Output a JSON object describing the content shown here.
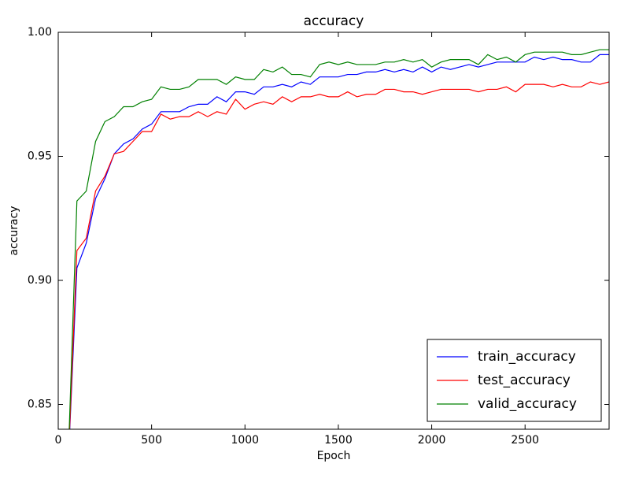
{
  "chart_data": {
    "type": "line",
    "title": "accuracy",
    "x_label": "Epoch",
    "y_label": "accuracy",
    "x": [
      50,
      100,
      150,
      200,
      250,
      300,
      350,
      400,
      450,
      500,
      550,
      600,
      650,
      700,
      750,
      800,
      850,
      900,
      950,
      1000,
      1050,
      1100,
      1150,
      1200,
      1250,
      1300,
      1350,
      1400,
      1450,
      1500,
      1550,
      1600,
      1650,
      1700,
      1750,
      1800,
      1850,
      1900,
      1950,
      2000,
      2050,
      2100,
      2150,
      2200,
      2250,
      2300,
      2350,
      2400,
      2450,
      2500,
      2550,
      2600,
      2650,
      2700,
      2750,
      2800,
      2850,
      2900,
      2950
    ],
    "series": [
      {
        "name": "train_accuracy",
        "color": "#0000ff",
        "values": [
          0.82,
          0.905,
          0.915,
          0.933,
          0.941,
          0.951,
          0.955,
          0.957,
          0.961,
          0.963,
          0.968,
          0.968,
          0.968,
          0.97,
          0.971,
          0.971,
          0.974,
          0.972,
          0.976,
          0.976,
          0.975,
          0.978,
          0.978,
          0.979,
          0.978,
          0.98,
          0.979,
          0.982,
          0.982,
          0.982,
          0.983,
          0.983,
          0.984,
          0.984,
          0.985,
          0.984,
          0.985,
          0.984,
          0.986,
          0.984,
          0.986,
          0.985,
          0.986,
          0.987,
          0.986,
          0.987,
          0.988,
          0.988,
          0.988,
          0.988,
          0.99,
          0.989,
          0.99,
          0.989,
          0.989,
          0.988,
          0.988,
          0.991,
          0.991
        ]
      },
      {
        "name": "test_accuracy",
        "color": "#ff0000",
        "values": [
          0.82,
          0.912,
          0.917,
          0.936,
          0.942,
          0.951,
          0.952,
          0.956,
          0.96,
          0.96,
          0.967,
          0.965,
          0.966,
          0.966,
          0.968,
          0.966,
          0.968,
          0.967,
          0.973,
          0.969,
          0.971,
          0.972,
          0.971,
          0.974,
          0.972,
          0.974,
          0.974,
          0.975,
          0.974,
          0.974,
          0.976,
          0.974,
          0.975,
          0.975,
          0.977,
          0.977,
          0.976,
          0.976,
          0.975,
          0.976,
          0.977,
          0.977,
          0.977,
          0.977,
          0.976,
          0.977,
          0.977,
          0.978,
          0.976,
          0.979,
          0.979,
          0.979,
          0.978,
          0.979,
          0.978,
          0.978,
          0.98,
          0.979,
          0.98
        ]
      },
      {
        "name": "valid_accuracy",
        "color": "#008000",
        "values": [
          0.82,
          0.932,
          0.936,
          0.956,
          0.964,
          0.966,
          0.97,
          0.97,
          0.972,
          0.973,
          0.978,
          0.977,
          0.977,
          0.978,
          0.981,
          0.981,
          0.981,
          0.979,
          0.982,
          0.981,
          0.981,
          0.985,
          0.984,
          0.986,
          0.983,
          0.983,
          0.982,
          0.987,
          0.988,
          0.987,
          0.988,
          0.987,
          0.987,
          0.987,
          0.988,
          0.988,
          0.989,
          0.988,
          0.989,
          0.986,
          0.988,
          0.989,
          0.989,
          0.989,
          0.987,
          0.991,
          0.989,
          0.99,
          0.988,
          0.991,
          0.992,
          0.992,
          0.992,
          0.992,
          0.991,
          0.991,
          0.992,
          0.993,
          0.993
        ]
      }
    ],
    "xlim": [
      0,
      2950
    ],
    "ylim": [
      0.84,
      1.0
    ],
    "xticks": [
      0,
      500,
      1000,
      1500,
      2000,
      2500
    ],
    "yticks": [
      0.85,
      {
        "value": 0.9,
        "label": "0.90"
      },
      0.95,
      {
        "value": 1.0,
        "label": "1.00"
      }
    ],
    "grid": false,
    "legend": "lower right"
  }
}
